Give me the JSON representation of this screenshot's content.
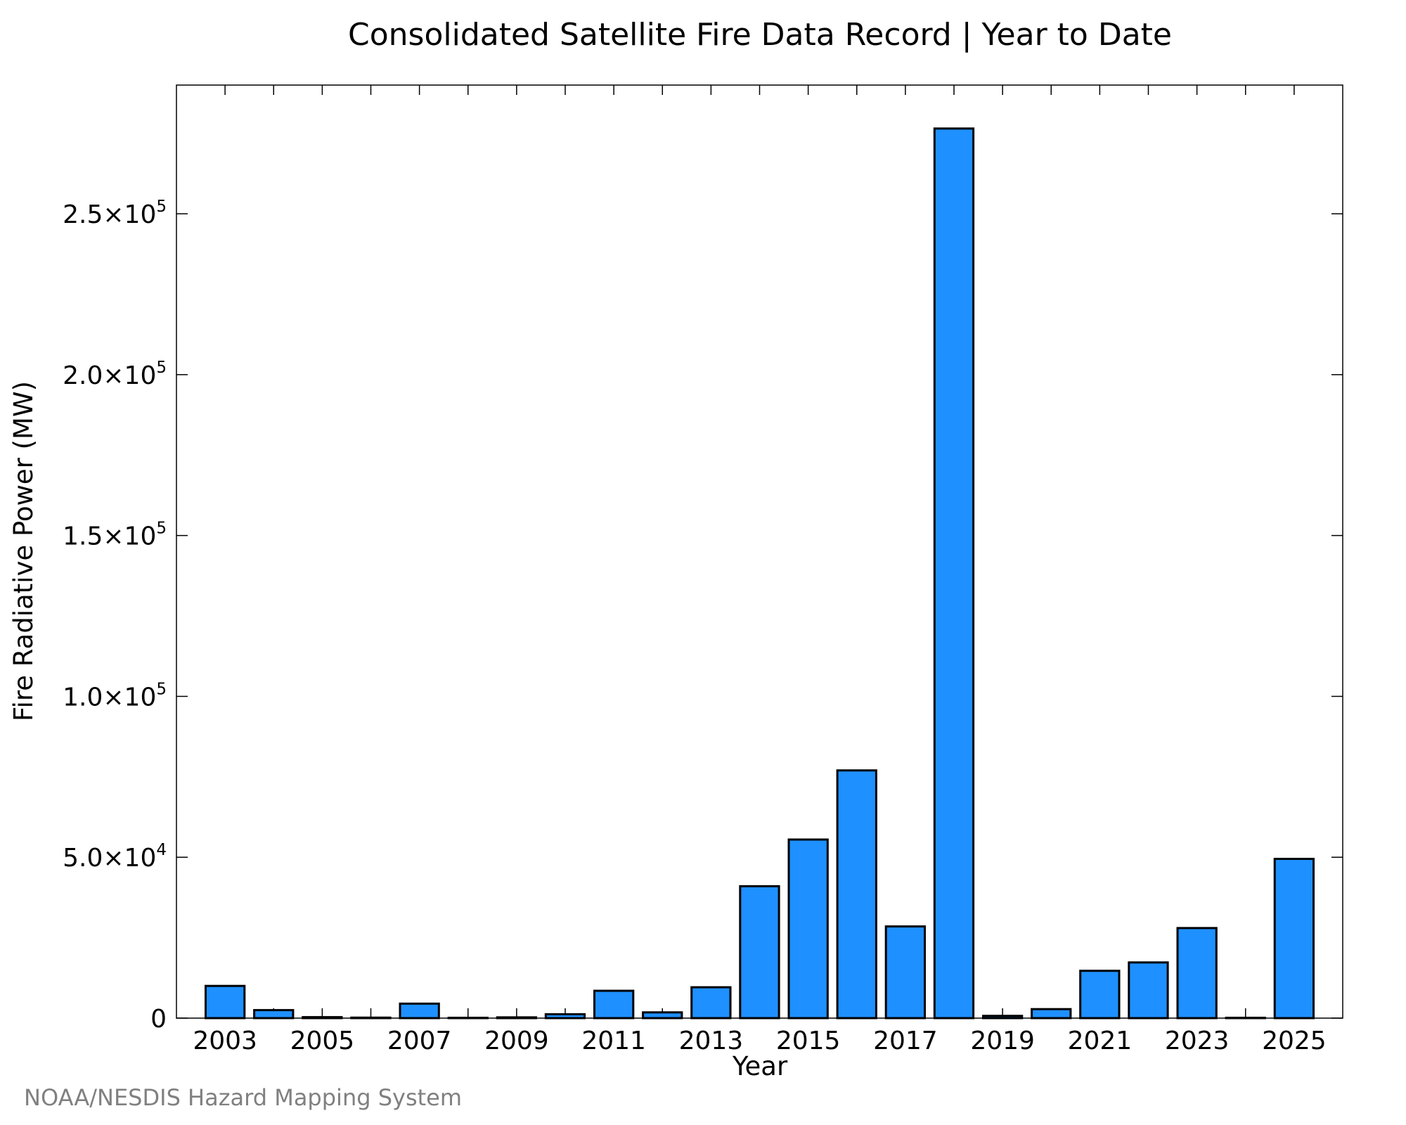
{
  "chart_data": {
    "type": "bar",
    "title": "Consolidated Satellite Fire Data Record | Year to Date",
    "xlabel": "Year",
    "ylabel": "Fire Radiative Power (MW)",
    "source": "NOAA/NESDIS Hazard Mapping System",
    "bar_color": "#1e90ff",
    "categories": [
      2003,
      2004,
      2005,
      2006,
      2007,
      2008,
      2009,
      2010,
      2011,
      2012,
      2013,
      2014,
      2015,
      2016,
      2017,
      2018,
      2019,
      2020,
      2021,
      2022,
      2023,
      2024,
      2025
    ],
    "values": [
      10000,
      2500,
      300,
      150,
      4500,
      100,
      250,
      1200,
      8500,
      1800,
      9600,
      41000,
      55500,
      77000,
      28500,
      276500,
      700,
      2800,
      14700,
      17300,
      28000,
      100,
      49500
    ],
    "xlim": [
      2002.0,
      2026.0
    ],
    "ylim": [
      0,
      290000
    ],
    "x_ticks": [
      2003,
      2005,
      2007,
      2009,
      2011,
      2013,
      2015,
      2017,
      2019,
      2021,
      2023,
      2025
    ],
    "y_ticks": [
      {
        "value": 0,
        "mant": "0",
        "exp": ""
      },
      {
        "value": 50000,
        "mant": "5.0×10",
        "exp": "4"
      },
      {
        "value": 100000,
        "mant": "1.0×10",
        "exp": "5"
      },
      {
        "value": 150000,
        "mant": "1.5×10",
        "exp": "5"
      },
      {
        "value": 200000,
        "mant": "2.0×10",
        "exp": "5"
      },
      {
        "value": 250000,
        "mant": "2.5×10",
        "exp": "5"
      }
    ],
    "grid": false,
    "legend": "none"
  }
}
